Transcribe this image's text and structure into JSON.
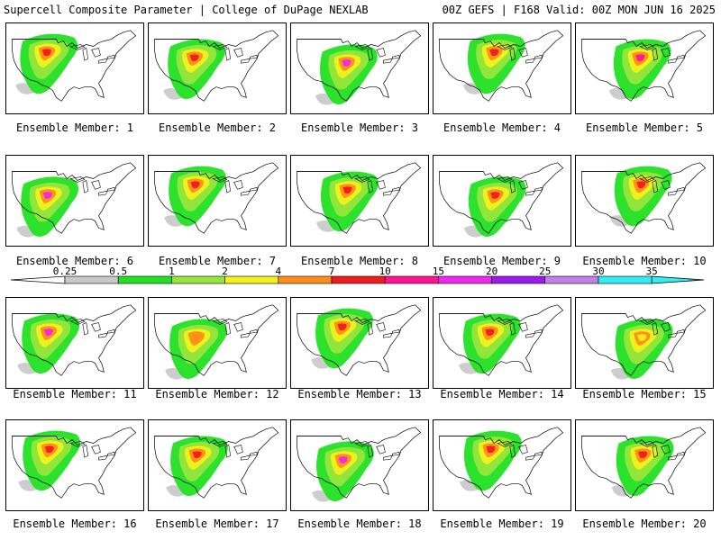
{
  "header": {
    "left": "Supercell Composite Parameter | College of DuPage NEXLAB",
    "right": "00Z GEFS | F168 Valid: 00Z MON JUN 16 2025"
  },
  "legend": {
    "tick_labels": [
      "0.25",
      "0.5",
      "1",
      "2",
      "4",
      "7",
      "10",
      "15",
      "20",
      "25",
      "30",
      "35"
    ],
    "colors": [
      "#c8c8c8",
      "#22e022",
      "#98e63c",
      "#f2f21a",
      "#ff8c1a",
      "#ee1c1c",
      "#ff1493",
      "#ee28ee",
      "#9b1aee",
      "#c080e6",
      "#30eef2"
    ]
  },
  "members": [
    {
      "label": "Ensemble Member: 1",
      "max_color": "#ee1c1c"
    },
    {
      "label": "Ensemble Member: 2",
      "max_color": "#ee1c1c"
    },
    {
      "label": "Ensemble Member: 3",
      "max_color": "#ee28ee"
    },
    {
      "label": "Ensemble Member: 4",
      "max_color": "#ee1c1c"
    },
    {
      "label": "Ensemble Member: 5",
      "max_color": "#ff1493"
    },
    {
      "label": "Ensemble Member: 6",
      "max_color": "#ee28ee"
    },
    {
      "label": "Ensemble Member: 7",
      "max_color": "#ee1c1c"
    },
    {
      "label": "Ensemble Member: 8",
      "max_color": "#ee1c1c"
    },
    {
      "label": "Ensemble Member: 9",
      "max_color": "#ee1c1c"
    },
    {
      "label": "Ensemble Member: 10",
      "max_color": "#ee1c1c"
    },
    {
      "label": "Ensemble Member: 11",
      "max_color": "#ee28ee"
    },
    {
      "label": "Ensemble Member: 12",
      "max_color": "#ff8c1a"
    },
    {
      "label": "Ensemble Member: 13",
      "max_color": "#ee1c1c"
    },
    {
      "label": "Ensemble Member: 14",
      "max_color": "#ee1c1c"
    },
    {
      "label": "Ensemble Member: 15",
      "max_color": "#f2f21a"
    },
    {
      "label": "Ensemble Member: 16",
      "max_color": "#ee1c1c"
    },
    {
      "label": "Ensemble Member: 17",
      "max_color": "#ee1c1c"
    },
    {
      "label": "Ensemble Member: 18",
      "max_color": "#ee28ee"
    },
    {
      "label": "Ensemble Member: 19",
      "max_color": "#ee1c1c"
    },
    {
      "label": "Ensemble Member: 20",
      "max_color": "#ee1c1c"
    }
  ]
}
